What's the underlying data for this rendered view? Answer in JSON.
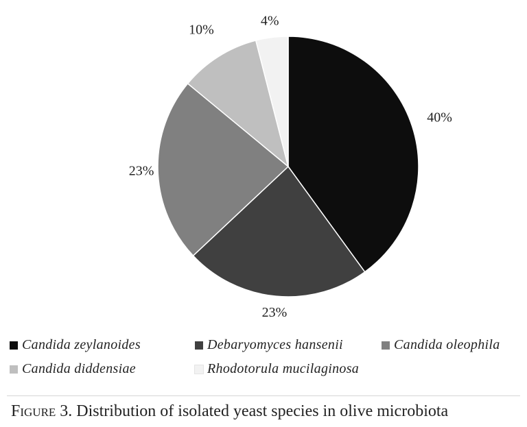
{
  "chart_data": {
    "type": "pie",
    "categories": [
      "Candida zeylanoides",
      "Debaryomyces hansenii",
      "Candida oleophila",
      "Candida diddensiae",
      "Rhodotorula mucilaginosa"
    ],
    "values": [
      40,
      23,
      23,
      10,
      4
    ],
    "labels": [
      "40%",
      "23%",
      "23%",
      "10%",
      "4%"
    ],
    "colors": [
      "#0d0d0d",
      "#404040",
      "#808080",
      "#bfbfbf",
      "#f2f2f2"
    ],
    "legend_placement": "bottom"
  },
  "caption": {
    "figure_word": "Figure",
    "figure_number": "3.",
    "text": "Distribution of isolated yeast species in olive microbiota"
  }
}
